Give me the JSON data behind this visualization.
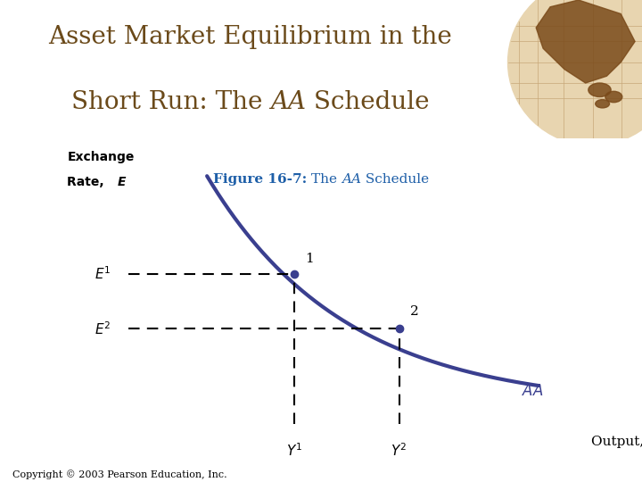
{
  "title_line1": "Asset Market Equilibrium in the",
  "title_line2_pre": "Short Run: The ",
  "title_line2_italic": "AA",
  "title_line2_post": " Schedule",
  "subtitle_bold": "Figure 16-7: ",
  "subtitle_rest": "The ",
  "subtitle_italic": "AA",
  "subtitle_end": " Schedule",
  "xlabel": "Output, Y",
  "ylabel_line1": "Exchange",
  "ylabel_line2": "Rate, ",
  "ylabel_e": "E",
  "aa_label": "AA",
  "point1_label": "1",
  "point2_label": "2",
  "copyright": "Copyright © 2003 Pearson Education, Inc.",
  "curve_color": "#3a3f8f",
  "title_bg_color": "#f5f0e8",
  "title_text_color": "#6b4a1a",
  "subtitle_color": "#1e5fa8",
  "gold_bar_color": "#c8a020",
  "p1x": 0.38,
  "p1y": 0.6,
  "p2x": 0.62,
  "p2y": 0.38
}
